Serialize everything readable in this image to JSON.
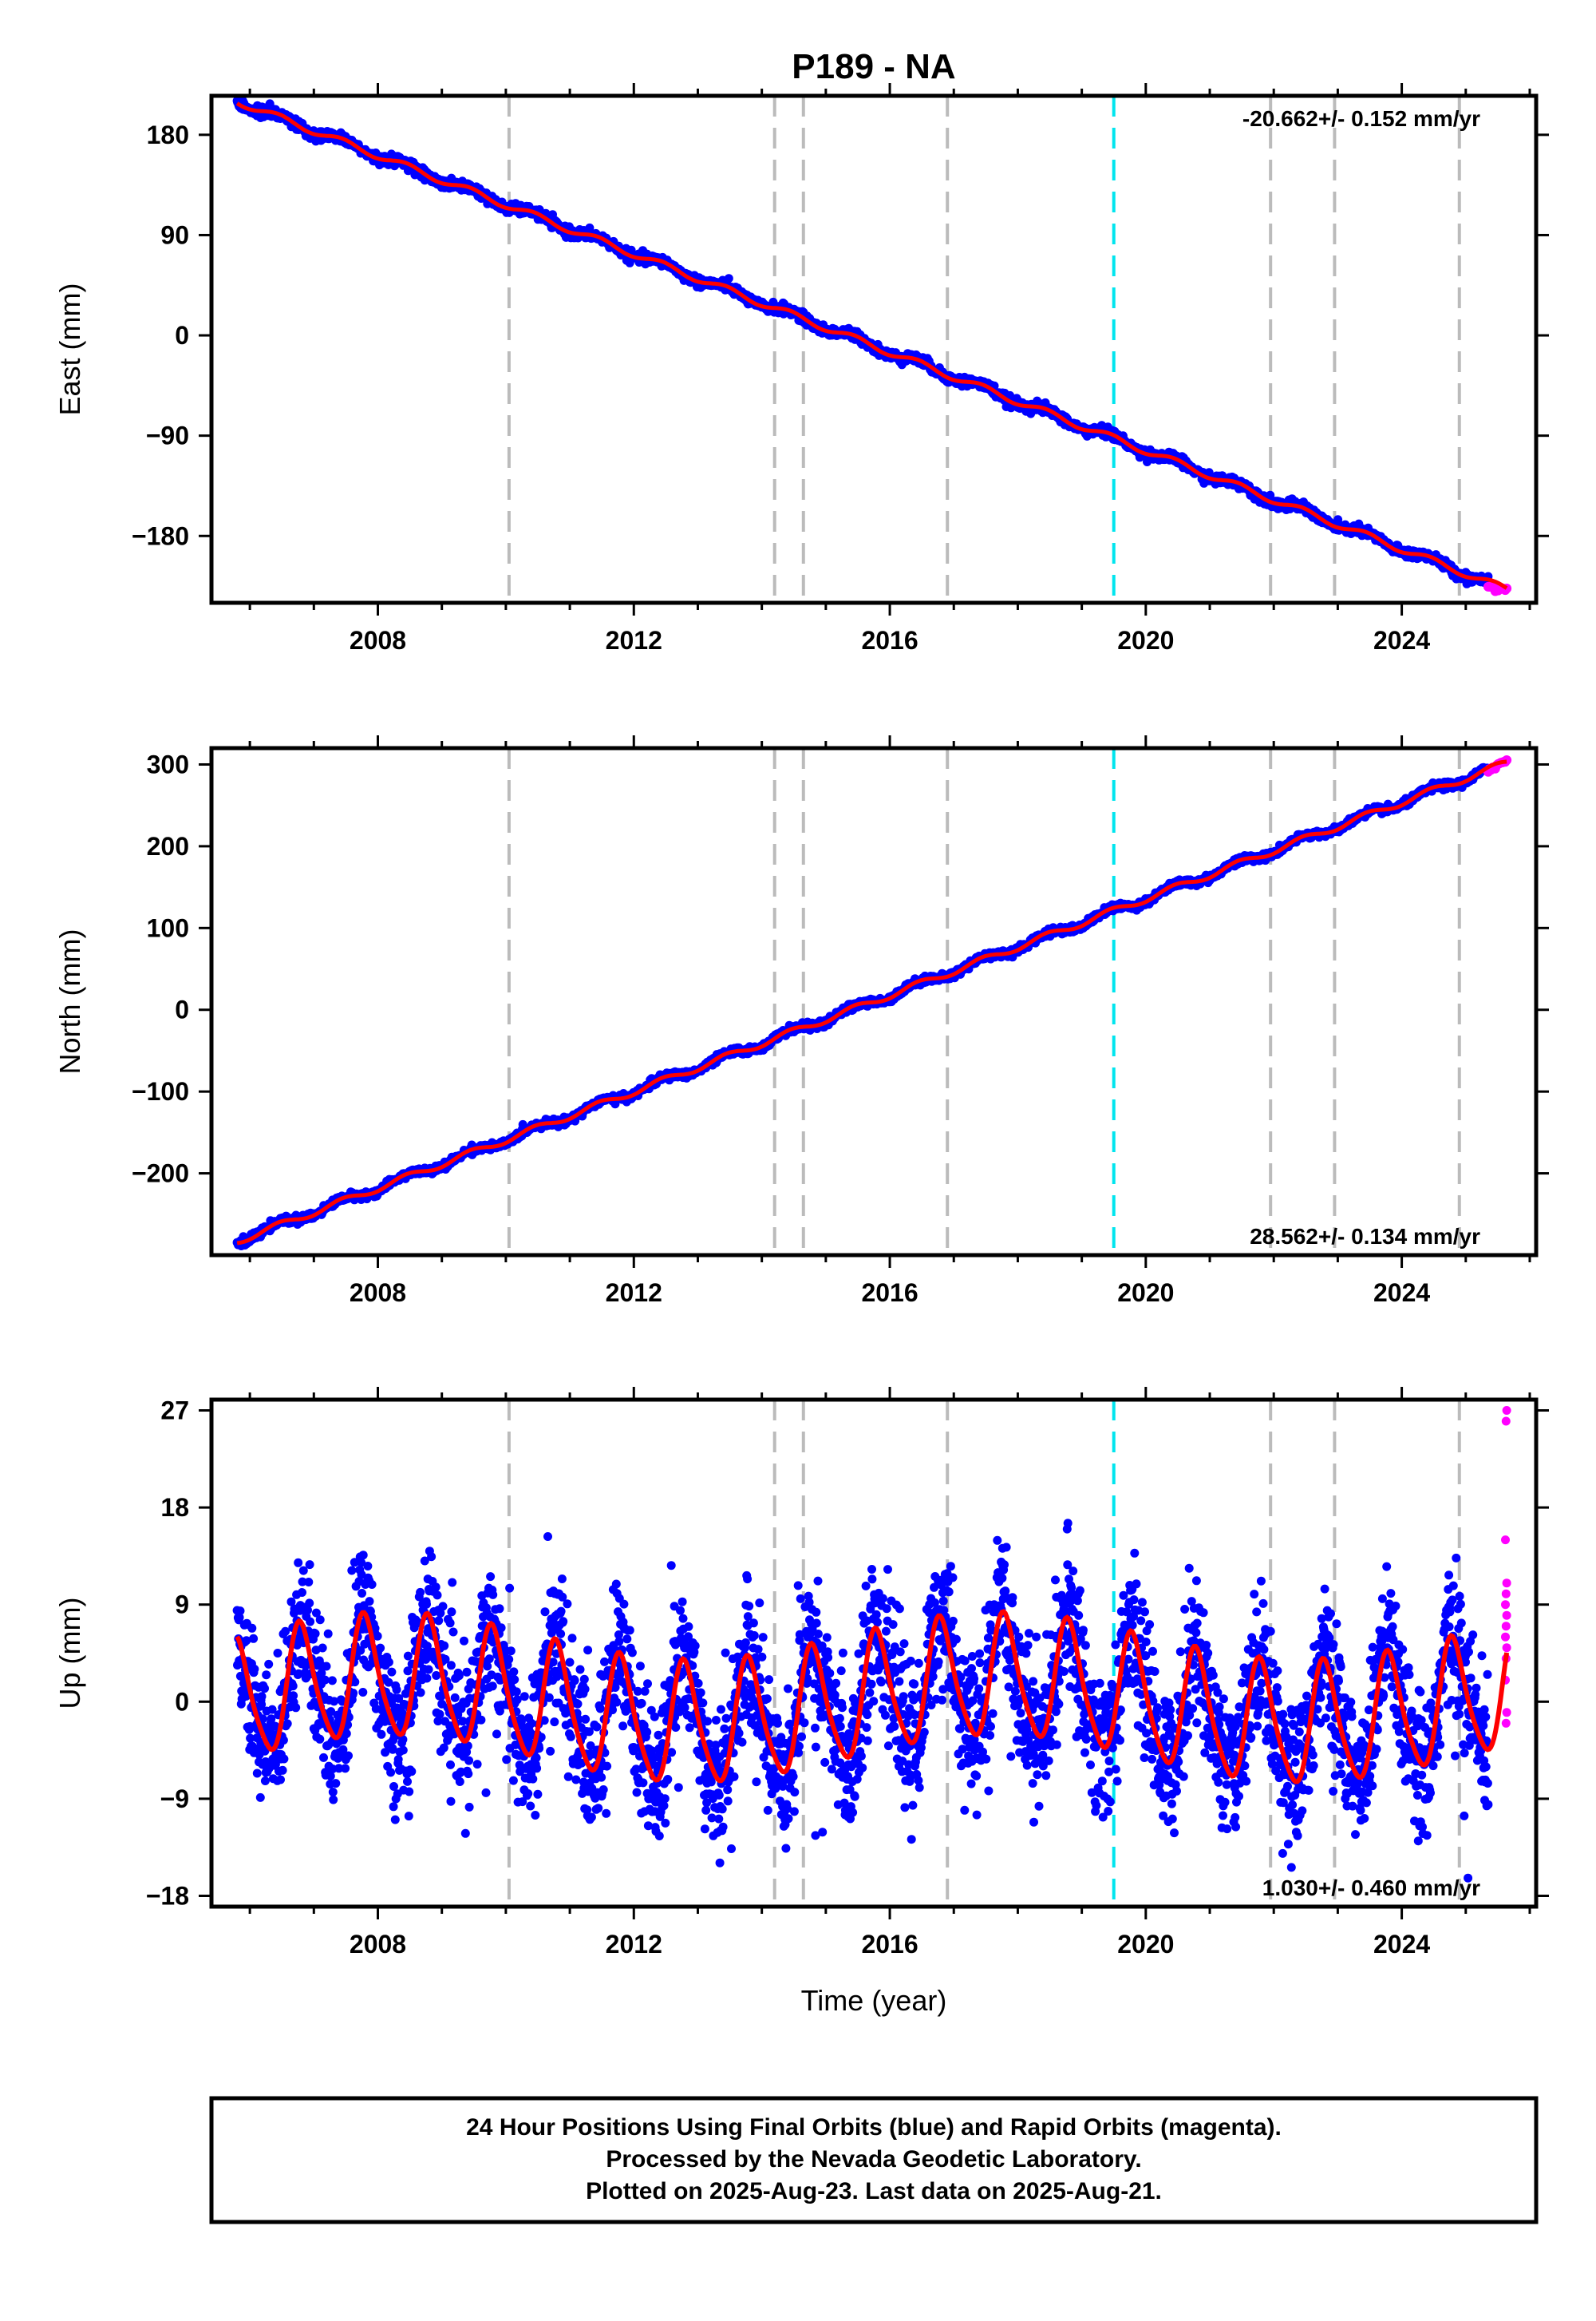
{
  "title": "P189 - NA",
  "xlabel": "Time (year)",
  "footer": {
    "line1": "24 Hour Positions Using Final Orbits (blue) and Rapid Orbits (magenta).",
    "line2": "Processed by the Nevada Geodetic Laboratory.",
    "line3": "Plotted on 2025-Aug-23. Last data on 2025-Aug-21."
  },
  "colors": {
    "final_orbits": "#0000ff",
    "rapid_orbits": "#ff00ff",
    "model_fit": "#ff0000",
    "event_line": "#bbbbbb",
    "antenna_change_line": "#00e5ee"
  },
  "chart_data": [
    {
      "type": "scatter",
      "panel": "east",
      "ylabel": "East (mm)",
      "xlim": [
        2005.4,
        2026.1
      ],
      "ylim": [
        -240,
        215
      ],
      "x_ticks": [
        2008,
        2012,
        2016,
        2020,
        2024
      ],
      "y_ticks": [
        -180,
        -90,
        0,
        90,
        180
      ],
      "rate_label": "-20.662+/- 0.152 mm/yr",
      "rate_position": "top-right",
      "grid": false,
      "series": [
        {
          "name": "24 Hour Positions Using Final Orbits (blue)",
          "style": "blue points",
          "x_start": 2005.8,
          "x_end": 2025.35,
          "y_start": 210,
          "y_end": -222,
          "trend_mm_per_yr": -20.662
        },
        {
          "name": "Rapid Orbits (magenta)",
          "style": "magenta points",
          "x_start": 2025.35,
          "x_end": 2025.64,
          "y_start": -225,
          "y_end": -228
        },
        {
          "style": "red model fit line",
          "x_start": 2005.8,
          "x_end": 2025.64,
          "y_start": 210,
          "y_end": -228
        }
      ],
      "event_lines": [
        2010.05,
        2014.2,
        2014.65,
        2016.9,
        2021.95,
        2022.95,
        2024.9
      ],
      "antenna_change_lines": [
        2019.5
      ]
    },
    {
      "type": "scatter",
      "panel": "north",
      "ylabel": "North (mm)",
      "xlim": [
        2005.4,
        2026.1
      ],
      "ylim": [
        -300,
        320
      ],
      "x_ticks": [
        2008,
        2012,
        2016,
        2020,
        2024
      ],
      "y_ticks": [
        -200,
        -100,
        0,
        100,
        200,
        300
      ],
      "rate_label": "28.562+/- 0.134 mm/yr",
      "rate_position": "bottom-right",
      "grid": false,
      "series": [
        {
          "name": "24 Hour Positions Using Final Orbits (blue)",
          "style": "blue points",
          "x_start": 2005.8,
          "x_end": 2025.35,
          "y_start": -283,
          "y_end": 290,
          "trend_mm_per_yr": 28.562
        },
        {
          "name": "Rapid Orbits (magenta)",
          "style": "magenta points",
          "x_start": 2025.35,
          "x_end": 2025.64,
          "y_start": 293,
          "y_end": 305
        },
        {
          "style": "red model fit line",
          "x_start": 2005.8,
          "x_end": 2025.64,
          "y_start": -283,
          "y_end": 302
        }
      ],
      "event_lines": [
        2010.05,
        2014.2,
        2014.65,
        2016.9,
        2021.95,
        2022.95,
        2024.9
      ],
      "antenna_change_lines": [
        2019.5
      ]
    },
    {
      "type": "scatter",
      "panel": "up",
      "ylabel": "Up (mm)",
      "xlabel": "Time (year)",
      "xlim": [
        2005.4,
        2026.1
      ],
      "ylim": [
        -19,
        28
      ],
      "x_ticks": [
        2008,
        2012,
        2016,
        2020,
        2024
      ],
      "y_ticks": [
        -18,
        -9,
        0,
        9,
        18,
        27
      ],
      "rate_label": "1.030+/- 0.460 mm/yr",
      "rate_position": "bottom-right",
      "grid": false,
      "series": [
        {
          "name": "24 Hour Positions Using Final Orbits (blue)",
          "style": "blue points",
          "x_start": 2005.8,
          "x_end": 2025.35,
          "seasonal_amplitude_mm": 5.5,
          "scatter_mm": 3.2,
          "y_min_observed": -18,
          "y_max_observed": 20
        },
        {
          "name": "Rapid Orbits (magenta)",
          "style": "magenta points",
          "x_start": 2025.35,
          "x_end": 2025.64,
          "values_mm": [
            27,
            26,
            15,
            11,
            10,
            9,
            8,
            7,
            6,
            5,
            4,
            2,
            -1,
            -2
          ]
        },
        {
          "style": "red model fit line",
          "shape": "annual sinusoid",
          "amplitude_mm": 5.5,
          "min_mm": -8.5,
          "max_mm": 9.5
        }
      ],
      "event_lines": [
        2010.05,
        2014.2,
        2014.65,
        2016.9,
        2021.95,
        2022.95,
        2024.9
      ],
      "antenna_change_lines": [
        2019.5
      ]
    }
  ]
}
